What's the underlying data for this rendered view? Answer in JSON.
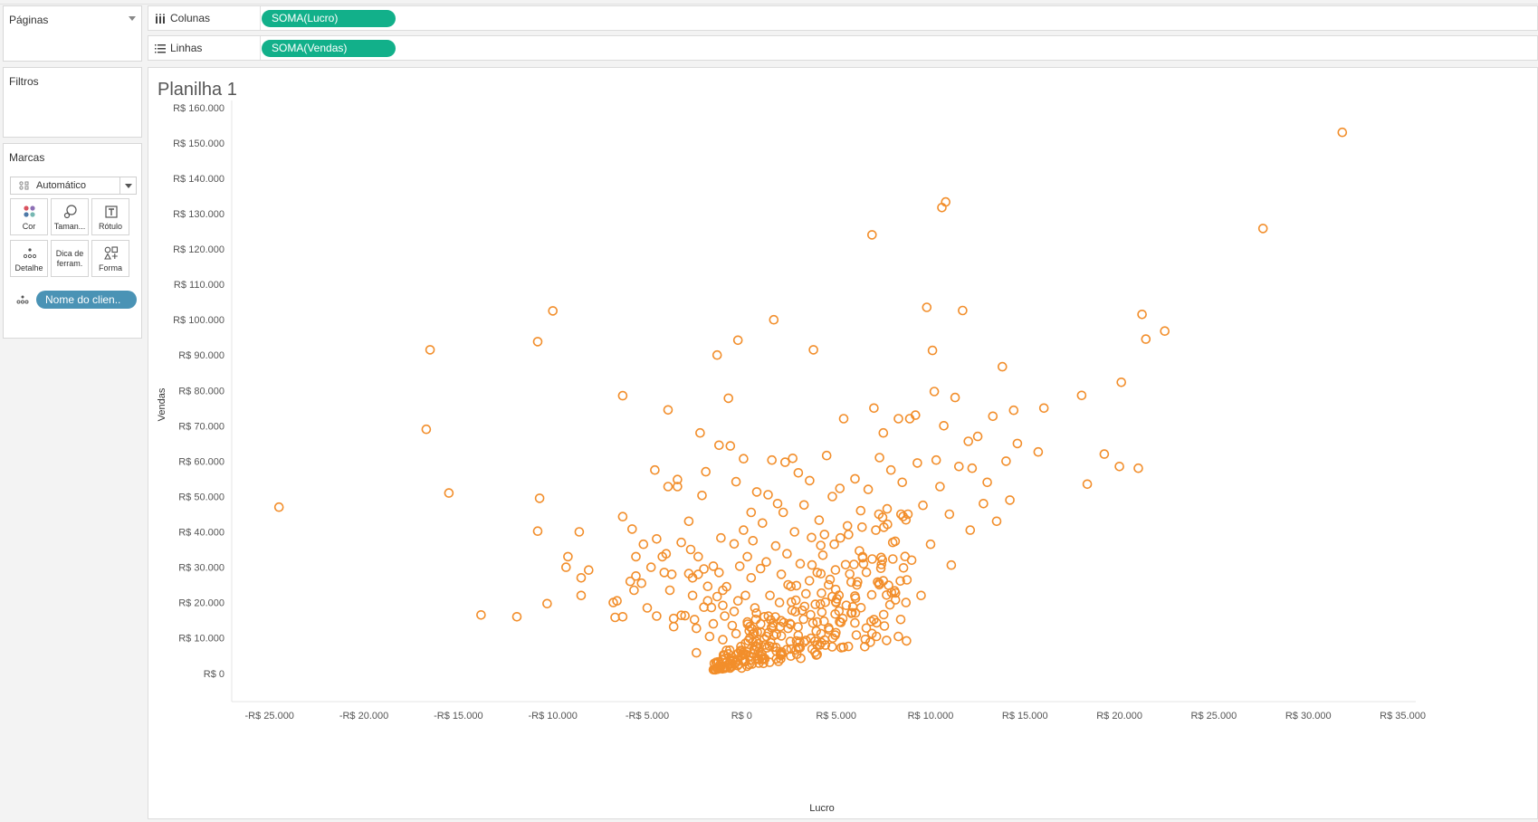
{
  "left_panel": {
    "pages": {
      "title": "Páginas"
    },
    "filters": {
      "title": "Filtros"
    },
    "marks": {
      "title": "Marcas",
      "mark_type": "Automático",
      "buttons": [
        {
          "label": "Cor",
          "icon": "color-icon"
        },
        {
          "label": "Taman...",
          "icon": "size-icon"
        },
        {
          "label": "Rótulo",
          "icon": "label-icon"
        },
        {
          "label": "Detalhe",
          "icon": "detail-icon"
        },
        {
          "label": "Dica de ferram.",
          "icon": "tooltip-icon"
        },
        {
          "label": "Forma",
          "icon": "shape-icon"
        }
      ],
      "detail_pill": "Nome do clien.."
    }
  },
  "shelves": {
    "columns": {
      "label": "Colunas",
      "pill": "SOMA(Lucro)"
    },
    "rows": {
      "label": "Linhas",
      "pill": "SOMA(Vendas)"
    }
  },
  "colors": {
    "mark": "#f28e2b",
    "measure_pill": "#12b08a",
    "dimension_pill": "#4a93b5"
  },
  "sheet_title": "Planilha 1",
  "chart_data": {
    "type": "scatter",
    "title": "Planilha 1",
    "xlabel": "Lucro",
    "ylabel": "Vendas",
    "xlim": [
      -27000,
      35500
    ],
    "ylim": [
      -8000,
      162000
    ],
    "x_ticks": [
      -25000,
      -20000,
      -15000,
      -10000,
      -5000,
      0,
      5000,
      10000,
      15000,
      20000,
      25000,
      30000,
      35000
    ],
    "x_tick_labels": [
      "-R$ 25.000",
      "-R$ 20.000",
      "-R$ 15.000",
      "-R$ 10.000",
      "-R$ 5.000",
      "R$ 0",
      "R$ 5.000",
      "R$ 10.000",
      "R$ 15.000",
      "R$ 20.000",
      "R$ 25.000",
      "R$ 30.000",
      "R$ 35.000"
    ],
    "y_ticks": [
      0,
      10000,
      20000,
      30000,
      40000,
      50000,
      60000,
      70000,
      80000,
      90000,
      100000,
      110000,
      120000,
      130000,
      140000,
      150000,
      160000
    ],
    "y_tick_labels": [
      "R$ 0",
      "R$ 10.000",
      "R$ 20.000",
      "R$ 30.000",
      "R$ 40.000",
      "R$ 50.000",
      "R$ 60.000",
      "R$ 70.000",
      "R$ 80.000",
      "R$ 90.000",
      "R$ 100.000",
      "R$ 110.000",
      "R$ 120.000",
      "R$ 130.000",
      "R$ 140.000",
      "R$ 150.000",
      "R$ 160.000"
    ],
    "grid": false,
    "marker": "open-circle",
    "points": [
      [
        -24500,
        47000
      ],
      [
        -16500,
        91500
      ],
      [
        -16700,
        69000
      ],
      [
        -15500,
        51000
      ],
      [
        -13800,
        16500
      ],
      [
        -11900,
        16000
      ],
      [
        -10800,
        93800
      ],
      [
        -10800,
        40200
      ],
      [
        -10700,
        49500
      ],
      [
        -10000,
        102500
      ],
      [
        -10300,
        19700
      ],
      [
        -9200,
        33000
      ],
      [
        -9300,
        30000
      ],
      [
        -8600,
        40000
      ],
      [
        -8500,
        27000
      ],
      [
        -8500,
        22000
      ],
      [
        -8100,
        29200
      ],
      [
        -6800,
        20000
      ],
      [
        -6700,
        15800
      ],
      [
        -6600,
        20500
      ],
      [
        -6300,
        44300
      ],
      [
        -6300,
        78500
      ],
      [
        -6300,
        16000
      ],
      [
        -5900,
        26000
      ],
      [
        -5600,
        27500
      ],
      [
        -5800,
        40800
      ],
      [
        -5700,
        23500
      ],
      [
        -5600,
        33000
      ],
      [
        -5300,
        25500
      ],
      [
        -5200,
        36500
      ],
      [
        -5000,
        18500
      ],
      [
        -4800,
        30000
      ],
      [
        -4600,
        57500
      ],
      [
        -4500,
        16200
      ],
      [
        -4500,
        38000
      ],
      [
        -4200,
        33000
      ],
      [
        -4000,
        33800
      ],
      [
        -4100,
        28500
      ],
      [
        -3900,
        74500
      ],
      [
        -3900,
        52800
      ],
      [
        -3800,
        23500
      ],
      [
        -3700,
        28000
      ],
      [
        -3600,
        15500
      ],
      [
        -3600,
        13200
      ],
      [
        -3400,
        54800
      ],
      [
        -3400,
        52800
      ],
      [
        -3200,
        16400
      ],
      [
        -3200,
        37000
      ],
      [
        -3000,
        16300
      ],
      [
        -2800,
        28200
      ],
      [
        -2800,
        43000
      ],
      [
        -2700,
        35000
      ],
      [
        -2600,
        22000
      ],
      [
        -2600,
        27000
      ],
      [
        -2500,
        15200
      ],
      [
        -2400,
        12700
      ],
      [
        -2300,
        33000
      ],
      [
        -2400,
        5800
      ],
      [
        -2300,
        28000
      ],
      [
        -2200,
        68000
      ],
      [
        -2100,
        50300
      ],
      [
        -2000,
        18700
      ],
      [
        -2000,
        29500
      ],
      [
        -1900,
        57000
      ],
      [
        -1800,
        24600
      ],
      [
        -1800,
        20500
      ],
      [
        -1700,
        10400
      ],
      [
        -1600,
        18600
      ],
      [
        -1500,
        14000
      ],
      [
        -1500,
        30300
      ],
      [
        -1300,
        21700
      ],
      [
        -1200,
        28500
      ],
      [
        -1100,
        38300
      ],
      [
        -1000,
        19200
      ],
      [
        -1000,
        23500
      ],
      [
        -1000,
        9500
      ],
      [
        -1200,
        64500
      ],
      [
        -1300,
        90000
      ],
      [
        -900,
        16200
      ],
      [
        -800,
        24500
      ],
      [
        -800,
        6500
      ],
      [
        -700,
        5500
      ],
      [
        -700,
        77800
      ],
      [
        -600,
        64300
      ],
      [
        -500,
        13500
      ],
      [
        -500,
        3800
      ],
      [
        -400,
        36600
      ],
      [
        -400,
        17500
      ],
      [
        -300,
        11200
      ],
      [
        -300,
        54200
      ],
      [
        -200,
        94200
      ],
      [
        -200,
        20500
      ],
      [
        -100,
        30300
      ],
      [
        0,
        5000
      ],
      [
        0,
        1500
      ],
      [
        100,
        60700
      ],
      [
        100,
        40500
      ],
      [
        200,
        8500
      ],
      [
        200,
        22000
      ],
      [
        300,
        33000
      ],
      [
        300,
        14500
      ],
      [
        400,
        2500
      ],
      [
        400,
        12000
      ],
      [
        500,
        27000
      ],
      [
        500,
        45500
      ],
      [
        600,
        37500
      ],
      [
        700,
        18500
      ],
      [
        800,
        7500
      ],
      [
        800,
        51300
      ],
      [
        1000,
        29600
      ],
      [
        1100,
        42500
      ],
      [
        1200,
        16000
      ],
      [
        1300,
        31500
      ],
      [
        1400,
        50500
      ],
      [
        1500,
        22000
      ],
      [
        1600,
        60300
      ],
      [
        1700,
        100000
      ],
      [
        1700,
        10700
      ],
      [
        1800,
        36000
      ],
      [
        1900,
        48000
      ],
      [
        2000,
        20000
      ],
      [
        2100,
        28000
      ],
      [
        2200,
        45500
      ],
      [
        2300,
        59700
      ],
      [
        2400,
        33800
      ],
      [
        2600,
        13800
      ],
      [
        2700,
        60800
      ],
      [
        2800,
        40000
      ],
      [
        2900,
        24800
      ],
      [
        3000,
        56700
      ],
      [
        3100,
        31000
      ],
      [
        3200,
        17800
      ],
      [
        3300,
        47600
      ],
      [
        3400,
        22500
      ],
      [
        3600,
        54500
      ],
      [
        3700,
        38400
      ],
      [
        3800,
        91500
      ],
      [
        3900,
        19500
      ],
      [
        4000,
        28500
      ],
      [
        4100,
        43300
      ],
      [
        4200,
        11200
      ],
      [
        4300,
        33400
      ],
      [
        4500,
        61600
      ],
      [
        4600,
        25000
      ],
      [
        4800,
        50000
      ],
      [
        4900,
        36500
      ],
      [
        5000,
        20000
      ],
      [
        5200,
        52300
      ],
      [
        5400,
        72000
      ],
      [
        5500,
        30700
      ],
      [
        5600,
        41700
      ],
      [
        5800,
        17000
      ],
      [
        6000,
        55000
      ],
      [
        6100,
        25000
      ],
      [
        6300,
        46000
      ],
      [
        6400,
        33000
      ],
      [
        6600,
        12800
      ],
      [
        6700,
        52000
      ],
      [
        6900,
        124000
      ],
      [
        7000,
        75000
      ],
      [
        7100,
        40500
      ],
      [
        7300,
        61000
      ],
      [
        7400,
        30800
      ],
      [
        7500,
        68000
      ],
      [
        7700,
        46500
      ],
      [
        7900,
        57500
      ],
      [
        8000,
        37000
      ],
      [
        8100,
        23300
      ],
      [
        8300,
        72000
      ],
      [
        8500,
        54000
      ],
      [
        8700,
        43400
      ],
      [
        8900,
        72000
      ],
      [
        9000,
        32000
      ],
      [
        9200,
        73000
      ],
      [
        9300,
        59500
      ],
      [
        9500,
        22000
      ],
      [
        9600,
        47500
      ],
      [
        9800,
        103500
      ],
      [
        10000,
        36500
      ],
      [
        10100,
        91300
      ],
      [
        10200,
        79700
      ],
      [
        10300,
        60300
      ],
      [
        10500,
        52800
      ],
      [
        10600,
        131700
      ],
      [
        10700,
        70000
      ],
      [
        10800,
        133300
      ],
      [
        11000,
        45000
      ],
      [
        11100,
        30600
      ],
      [
        11300,
        78000
      ],
      [
        11500,
        58500
      ],
      [
        11700,
        102600
      ],
      [
        12000,
        65600
      ],
      [
        12100,
        40500
      ],
      [
        12200,
        58000
      ],
      [
        12500,
        67000
      ],
      [
        12800,
        48000
      ],
      [
        13000,
        54000
      ],
      [
        13300,
        72700
      ],
      [
        13500,
        43000
      ],
      [
        13800,
        86700
      ],
      [
        14000,
        60000
      ],
      [
        14200,
        49000
      ],
      [
        14400,
        74400
      ],
      [
        14600,
        65000
      ],
      [
        15700,
        62600
      ],
      [
        16000,
        75000
      ],
      [
        18000,
        78600
      ],
      [
        18300,
        53500
      ],
      [
        19200,
        62000
      ],
      [
        20000,
        58500
      ],
      [
        20100,
        82300
      ],
      [
        21000,
        58000
      ],
      [
        21200,
        101500
      ],
      [
        21400,
        94500
      ],
      [
        22400,
        96800
      ],
      [
        27600,
        125800
      ],
      [
        31800,
        153000
      ]
    ],
    "dense_cluster": {
      "count": 260,
      "x_range": [
        -1500,
        9000
      ],
      "y_range": [
        1000,
        45000
      ]
    }
  }
}
